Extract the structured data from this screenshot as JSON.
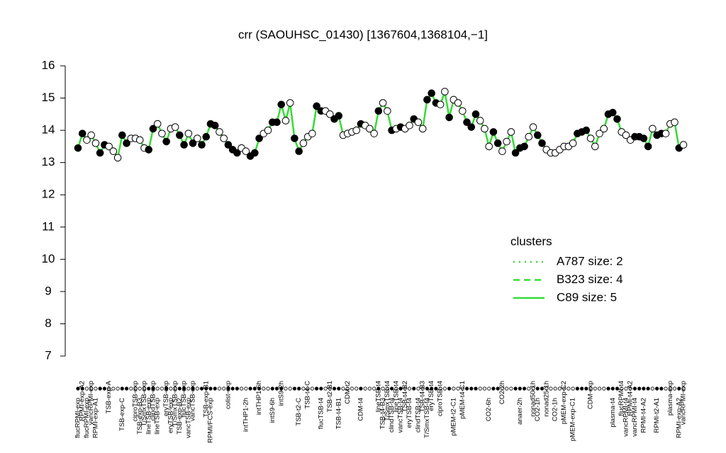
{
  "chart_data": {
    "type": "dotline",
    "title": "crr (SAOUHSC_01430) [1367604,1368104,−1]",
    "ylim": [
      7,
      16
    ],
    "yticks": [
      7,
      8,
      9,
      10,
      11,
      12,
      13,
      14,
      15,
      16
    ],
    "line_color": "#33dd33",
    "values": [
      13.45,
      13.9,
      13.7,
      13.85,
      13.6,
      13.3,
      13.55,
      13.5,
      13.35,
      13.15,
      13.85,
      13.6,
      13.75,
      13.75,
      13.7,
      13.45,
      13.4,
      14.05,
      14.2,
      13.9,
      13.65,
      14.05,
      14.1,
      13.85,
      13.55,
      13.9,
      13.6,
      13.75,
      13.55,
      13.8,
      14.2,
      14.15,
      13.95,
      13.75,
      13.55,
      13.4,
      13.3,
      13.45,
      13.35,
      13.2,
      13.3,
      13.75,
      13.9,
      14.0,
      14.25,
      14.25,
      14.8,
      14.3,
      14.85,
      13.75,
      13.35,
      13.6,
      13.8,
      13.9,
      14.75,
      14.6,
      14.6,
      14.5,
      14.35,
      14.45,
      13.85,
      13.9,
      13.95,
      14.0,
      14.2,
      14.15,
      14.05,
      13.9,
      14.6,
      14.85,
      14.6,
      14.0,
      14.05,
      14.1,
      14.05,
      14.15,
      14.35,
      14.25,
      14.05,
      14.95,
      15.15,
      14.85,
      14.8,
      15.2,
      14.4,
      14.95,
      14.85,
      14.6,
      14.25,
      14.1,
      14.5,
      14.3,
      14.05,
      13.5,
      13.95,
      13.6,
      13.35,
      13.65,
      13.95,
      13.3,
      13.45,
      13.5,
      13.8,
      14.1,
      13.85,
      13.6,
      13.4,
      13.3,
      13.3,
      13.4,
      13.5,
      13.5,
      13.6,
      13.9,
      13.95,
      14.0,
      13.75,
      13.5,
      13.9,
      14.05,
      14.5,
      14.55,
      14.35,
      13.95,
      13.85,
      13.7,
      13.8,
      13.8,
      13.75,
      13.5,
      14.05,
      13.85,
      13.9,
      13.9,
      14.2,
      14.25,
      13.45,
      13.55
    ],
    "point_colors": [
      "black",
      "black",
      "white",
      "white",
      "white",
      "black",
      "black",
      "white",
      "white",
      "white",
      "black",
      "black",
      "white",
      "white",
      "white",
      "white",
      "black",
      "black",
      "white",
      "white",
      "black",
      "white",
      "white",
      "black",
      "black",
      "white",
      "black",
      "white",
      "black",
      "black",
      "black",
      "black",
      "white",
      "white",
      "black",
      "black",
      "black",
      "white",
      "white",
      "black",
      "black",
      "black",
      "white",
      "white",
      "black",
      "black",
      "black",
      "white",
      "white",
      "black",
      "black",
      "white",
      "white",
      "white",
      "black",
      "black",
      "white",
      "white",
      "black",
      "black",
      "white",
      "white",
      "white",
      "white",
      "black",
      "white",
      "white",
      "white",
      "black",
      "white",
      "white",
      "black",
      "white",
      "black",
      "white",
      "white",
      "black",
      "white",
      "white",
      "black",
      "black",
      "black",
      "white",
      "white",
      "black",
      "white",
      "white",
      "white",
      "black",
      "black",
      "black",
      "white",
      "white",
      "white",
      "black",
      "black",
      "white",
      "white",
      "white",
      "black",
      "black",
      "black",
      "white",
      "white",
      "black",
      "black",
      "white",
      "white",
      "white",
      "white",
      "white",
      "white",
      "white",
      "black",
      "black",
      "black",
      "white",
      "white",
      "white",
      "white",
      "black",
      "black",
      "black",
      "white",
      "white",
      "white",
      "black",
      "black",
      "black",
      "black",
      "white",
      "black",
      "black",
      "white",
      "white",
      "white",
      "black",
      "white"
    ],
    "labels_top": [
      null,
      "RPMI-exp-A2",
      null,
      "vancRPMI-exp",
      null,
      null,
      null,
      "TSB-exp-A",
      null,
      null,
      null,
      null,
      null,
      "ciproTSB-exp",
      null,
      "T/SmxTSB-exp",
      null,
      "clindTSB-exp",
      null,
      null,
      "eryTSB-exp",
      null,
      "T/SmxTSB-exp",
      null,
      "flucTSB-exp",
      null,
      "vancTSB-exp",
      null,
      null,
      "TSB-exp-B1",
      null,
      null,
      null,
      null,
      "colist-exp",
      null,
      null,
      null,
      null,
      null,
      null,
      "intTHP1-6h",
      null,
      null,
      null,
      null,
      "intS9-2h",
      null,
      null,
      null,
      null,
      null,
      "TSB-t4-C",
      null,
      null,
      null,
      null,
      "TSB-t2-B1",
      null,
      null,
      null,
      "CDM-t2",
      null,
      null,
      null,
      null,
      null,
      null,
      "lineTSB-t4",
      null,
      "T/SmxTSB-t4",
      null,
      "lineTSB-t4",
      null,
      "TSB-t4-B2",
      null,
      null,
      null,
      "TSB-t4-B3",
      null,
      "eryTSB-t4",
      null,
      "ciproTSB-t4",
      null,
      null,
      null,
      null,
      "pMEM-t4-C1",
      null,
      null,
      null,
      null,
      null,
      null,
      null,
      null,
      "CO2-2h",
      null,
      null,
      null,
      null,
      null,
      null,
      "nonad50-1h",
      null,
      null,
      "nonad25-1h",
      null,
      null,
      null,
      "pMEM-exp-C2",
      null,
      null,
      null,
      null,
      null,
      "CDM-exp",
      null,
      null,
      null,
      null,
      null,
      null,
      "flucRPMI-t4",
      null,
      "RPMI-t4-A2",
      null,
      null,
      null,
      null,
      null,
      null,
      null,
      null,
      "plasma-exp",
      null,
      null,
      "vancRPMI-exp"
    ],
    "labels_bottom": [
      "flucRPMI-exp",
      null,
      "flucRPMI-exp",
      null,
      "RPMI-exp-A1",
      null,
      null,
      null,
      null,
      null,
      "TSB-exp-C",
      null,
      null,
      null,
      "TSB-exp-B3",
      null,
      "lineTSB-exp",
      null,
      "lineTSB-exp",
      null,
      null,
      "eryTSB-exp",
      null,
      "TSB-exp-B2",
      null,
      "vancTSB-exp",
      null,
      null,
      null,
      null,
      "RPMI/FCS-exp",
      null,
      null,
      null,
      null,
      null,
      null,
      null,
      "intTHP1-2h",
      null,
      null,
      null,
      null,
      null,
      "intS9-6h",
      null,
      null,
      null,
      null,
      null,
      "TSB-t2-C",
      null,
      null,
      null,
      null,
      "flucTSB-t4",
      null,
      null,
      null,
      "TSB-t4-B1",
      null,
      null,
      null,
      null,
      "CDM-t4",
      null,
      null,
      null,
      null,
      "TSB-t4-B3",
      null,
      "clindTSB-t4",
      null,
      "vancTSB-t4",
      null,
      "eryTSB-t4",
      null,
      "clindTSB-t4",
      null,
      "T/SmxTSB-t4",
      null,
      null,
      null,
      null,
      null,
      "pMEM-t2-C1",
      null,
      null,
      null,
      null,
      null,
      null,
      null,
      "CO2-6h",
      null,
      null,
      null,
      null,
      null,
      null,
      "anaer-2h",
      null,
      null,
      null,
      "CO2-1h",
      null,
      null,
      null,
      "CO2-1h",
      null,
      null,
      null,
      "pMEM-exp-C1",
      null,
      null,
      null,
      null,
      null,
      null,
      null,
      null,
      "plasma-t4",
      null,
      null,
      "vancRPMI-t4",
      null,
      "vancRPMI-t4",
      null,
      "RPMI-t4-A2",
      null,
      null,
      "RPMI-t2-A1",
      null,
      null,
      null,
      null,
      "RPMI-exp-A2",
      null
    ],
    "legend": {
      "title": "clusters",
      "items": [
        {
          "label": "A787 size: 2",
          "style": "dotted"
        },
        {
          "label": "B323 size: 4",
          "style": "dashed"
        },
        {
          "label": "C89 size: 5",
          "style": "solid"
        }
      ]
    }
  }
}
